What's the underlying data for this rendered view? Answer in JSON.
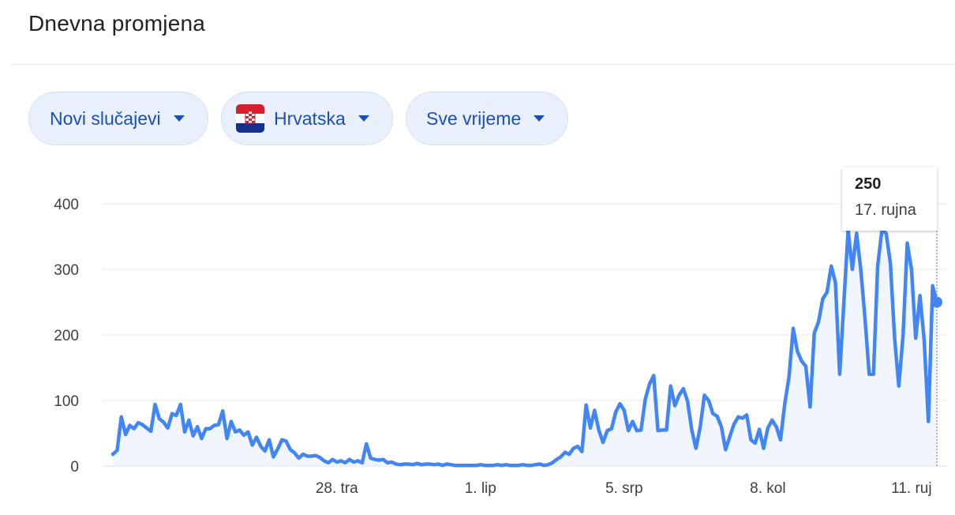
{
  "header": {
    "title": "Dnevna promjena"
  },
  "filters": {
    "metric": "Novi slučajevi",
    "region": "Hrvatska",
    "range": "Sve vrijeme"
  },
  "tooltip": {
    "value": "250",
    "date": "17. rujna"
  },
  "colors": {
    "line": "#4285f4",
    "chip_bg": "#e9f0fb",
    "chip_text": "#1a4fb8",
    "grid": "#e8eaed"
  },
  "icons": {
    "flag": "croatia-flag-icon",
    "caret": "caret-down-icon"
  },
  "chart_data": {
    "type": "line",
    "title": "",
    "xlabel": "",
    "ylabel": "",
    "ylim": [
      0,
      400
    ],
    "y_ticks": [
      0,
      100,
      200,
      300,
      400
    ],
    "x_ticks": [
      {
        "index": 53,
        "label": "28. tra"
      },
      {
        "index": 87,
        "label": "1. lip"
      },
      {
        "index": 121,
        "label": "5. srp"
      },
      {
        "index": 155,
        "label": "8. kol"
      },
      {
        "index": 189,
        "label": "11. ruj"
      }
    ],
    "grid": true,
    "series": [
      {
        "values": [
          18,
          24,
          75,
          48,
          62,
          57,
          66,
          63,
          58,
          53,
          94,
          72,
          67,
          58,
          80,
          77,
          94,
          52,
          70,
          46,
          60,
          42,
          57,
          57,
          62,
          63,
          84,
          42,
          68,
          52,
          55,
          47,
          52,
          32,
          44,
          30,
          23,
          40,
          14,
          26,
          40,
          38,
          25,
          20,
          12,
          18,
          15,
          15,
          16,
          13,
          8,
          5,
          10,
          6,
          8,
          5,
          10,
          6,
          8,
          5,
          34,
          12,
          10,
          9,
          10,
          5,
          6,
          3,
          2,
          3,
          3,
          2,
          4,
          2,
          3,
          3,
          2,
          3,
          1,
          3,
          2,
          1,
          1,
          1,
          1,
          1,
          1,
          2,
          1,
          1,
          1,
          2,
          1,
          2,
          1,
          1,
          1,
          2,
          1,
          1,
          2,
          3,
          1,
          2,
          5,
          10,
          14,
          21,
          18,
          27,
          30,
          22,
          93,
          58,
          85,
          55,
          36,
          54,
          57,
          82,
          95,
          85,
          54,
          68,
          54,
          55,
          102,
          125,
          138,
          54,
          55,
          55,
          122,
          92,
          108,
          118,
          99,
          55,
          27,
          60,
          108,
          100,
          80,
          76,
          60,
          25,
          45,
          64,
          75,
          73,
          78,
          40,
          35,
          56,
          27,
          58,
          70,
          60,
          40,
          95,
          135,
          210,
          175,
          160,
          152,
          90,
          203,
          220,
          255,
          265,
          305,
          280,
          140,
          250,
          360,
          300,
          355,
          300,
          225,
          140,
          140,
          305,
          360,
          355,
          310,
          195,
          122,
          200,
          340,
          300,
          195,
          260,
          193,
          68,
          275,
          250
        ]
      }
    ]
  }
}
